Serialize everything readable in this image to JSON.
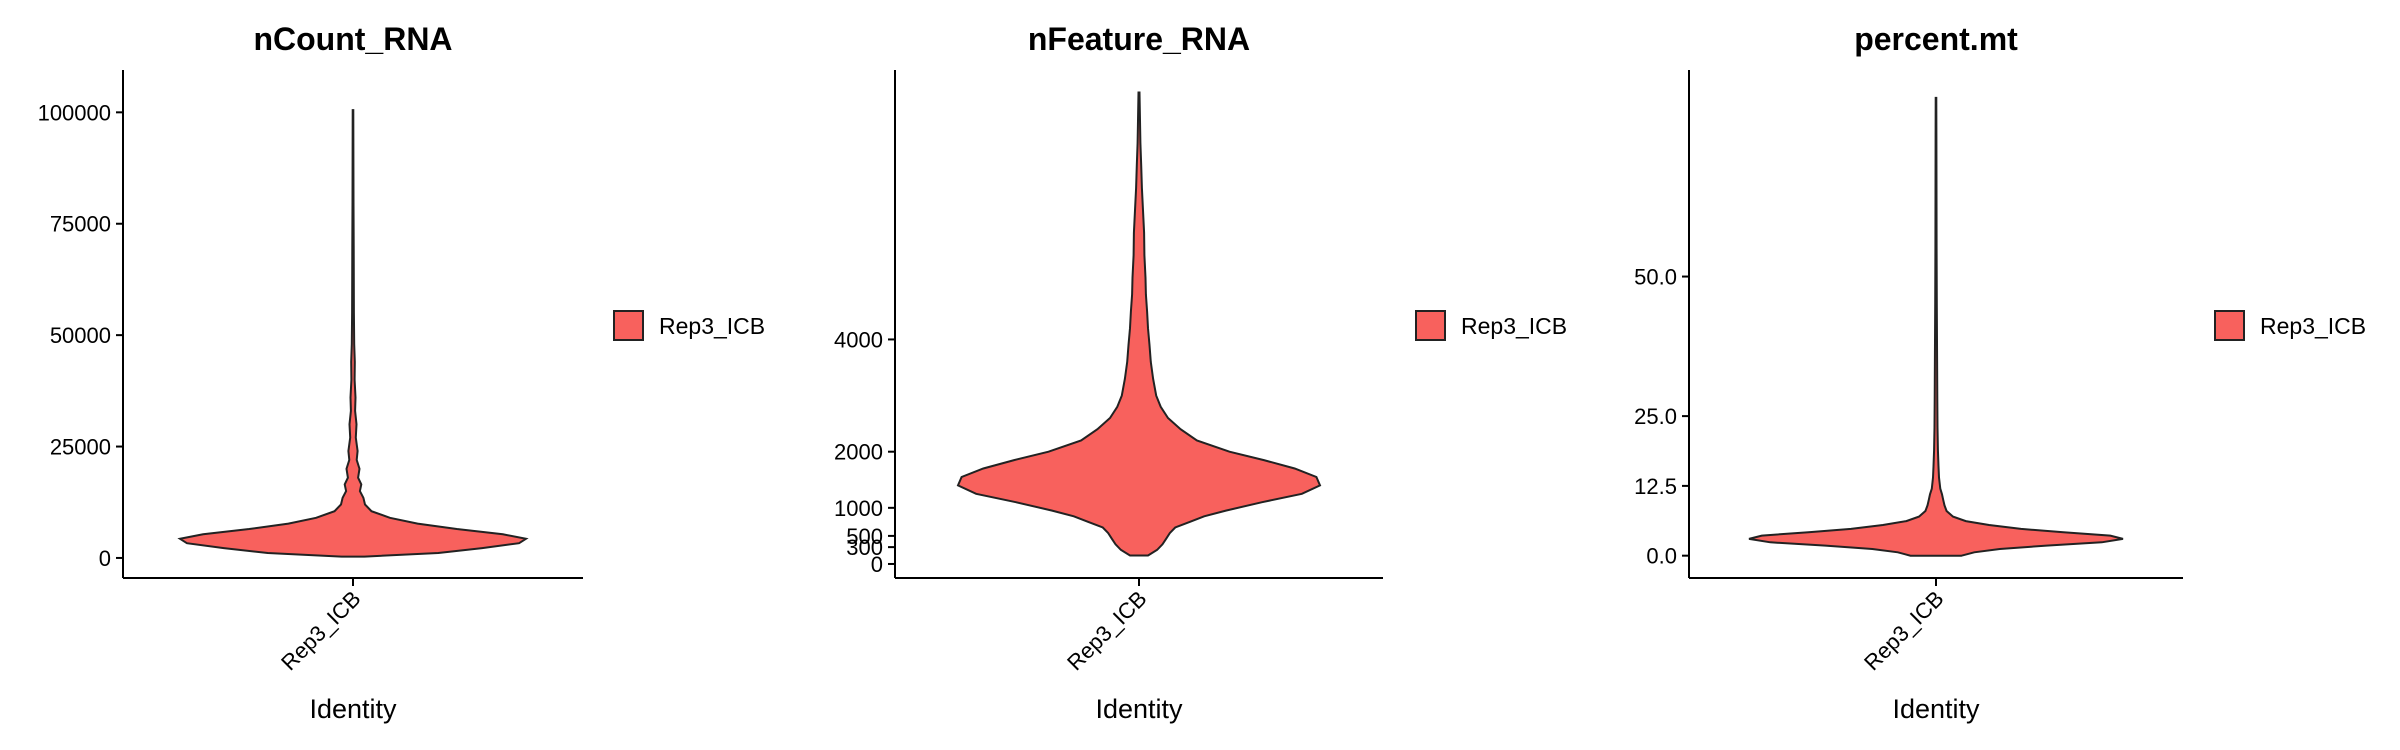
{
  "colors": {
    "fill": "#F8615D",
    "outline": "#222222",
    "axis": "#000000"
  },
  "chart_data": [
    {
      "type": "violin",
      "title": "nCount_RNA",
      "xlabel": "Identity",
      "ylabel": "",
      "categories": [
        "Rep3_ICB"
      ],
      "legend": [
        "Rep3_ICB"
      ],
      "legend_position": "right",
      "grid": false,
      "ylim": [
        -4500,
        109500
      ],
      "yticks": [
        0,
        25000,
        50000,
        75000,
        100000
      ],
      "ytick_labels": [
        "0",
        "25000",
        "50000",
        "75000",
        "100000"
      ],
      "y_max_observed": 100500,
      "density_profile": [
        [
          300,
          0.05
        ],
        [
          1100,
          0.37
        ],
        [
          2200,
          0.56
        ],
        [
          3300,
          0.72
        ],
        [
          4300,
          0.75
        ],
        [
          5300,
          0.65
        ],
        [
          6500,
          0.45
        ],
        [
          7700,
          0.28
        ],
        [
          9000,
          0.16
        ],
        [
          10500,
          0.08
        ],
        [
          12000,
          0.052
        ],
        [
          13500,
          0.045
        ],
        [
          15000,
          0.03
        ],
        [
          16500,
          0.036
        ],
        [
          18000,
          0.022
        ],
        [
          20000,
          0.028
        ],
        [
          22000,
          0.016
        ],
        [
          24000,
          0.02
        ],
        [
          27000,
          0.012
        ],
        [
          30000,
          0.015
        ],
        [
          33000,
          0.009
        ],
        [
          36000,
          0.011
        ],
        [
          40000,
          0.007
        ],
        [
          44000,
          0.008
        ],
        [
          48000,
          0.005
        ],
        [
          55000,
          0.004
        ],
        [
          62000,
          0.0035
        ],
        [
          70000,
          0.003
        ],
        [
          80000,
          0.002
        ],
        [
          90000,
          0.0018
        ],
        [
          100500,
          0.0015
        ]
      ]
    },
    {
      "type": "violin",
      "title": "nFeature_RNA",
      "xlabel": "Identity",
      "ylabel": "",
      "categories": [
        "Rep3_ICB"
      ],
      "legend": [
        "Rep3_ICB"
      ],
      "legend_position": "right",
      "grid": false,
      "ylim": [
        -250,
        8800
      ],
      "yticks": [
        0,
        300,
        500,
        1000,
        2000,
        4000
      ],
      "ytick_labels": [
        "0",
        "300",
        "500",
        "1000",
        "2000",
        "4000"
      ],
      "y_max_observed": 8400,
      "density_profile": [
        [
          150,
          0.05
        ],
        [
          250,
          0.1
        ],
        [
          350,
          0.13
        ],
        [
          450,
          0.15
        ],
        [
          550,
          0.17
        ],
        [
          650,
          0.2
        ],
        [
          750,
          0.28
        ],
        [
          850,
          0.36
        ],
        [
          950,
          0.48
        ],
        [
          1100,
          0.68
        ],
        [
          1250,
          0.9
        ],
        [
          1400,
          1.0
        ],
        [
          1550,
          0.98
        ],
        [
          1700,
          0.86
        ],
        [
          1850,
          0.69
        ],
        [
          2000,
          0.5
        ],
        [
          2200,
          0.32
        ],
        [
          2400,
          0.23
        ],
        [
          2600,
          0.16
        ],
        [
          2800,
          0.12
        ],
        [
          3000,
          0.095
        ],
        [
          3300,
          0.078
        ],
        [
          3600,
          0.065
        ],
        [
          3900,
          0.058
        ],
        [
          4200,
          0.05
        ],
        [
          4500,
          0.045
        ],
        [
          4800,
          0.038
        ],
        [
          5100,
          0.036
        ],
        [
          5500,
          0.03
        ],
        [
          5900,
          0.028
        ],
        [
          6300,
          0.022
        ],
        [
          6700,
          0.016
        ],
        [
          7100,
          0.012
        ],
        [
          7500,
          0.008
        ],
        [
          8000,
          0.005
        ],
        [
          8400,
          0.003
        ]
      ]
    },
    {
      "type": "violin",
      "title": "percent.mt",
      "xlabel": "Identity",
      "ylabel": "",
      "categories": [
        "Rep3_ICB"
      ],
      "legend": [
        "Rep3_ICB"
      ],
      "legend_position": "right",
      "grid": false,
      "ylim": [
        -4,
        87
      ],
      "yticks": [
        0,
        12.5,
        25,
        50
      ],
      "ytick_labels": [
        "0.0",
        "12.5",
        "25.0",
        "50.0"
      ],
      "y_max_observed": 82,
      "density_profile": [
        [
          0.0,
          0.12
        ],
        [
          0.6,
          0.18
        ],
        [
          1.2,
          0.3
        ],
        [
          1.8,
          0.52
        ],
        [
          2.4,
          0.78
        ],
        [
          3.0,
          0.88
        ],
        [
          3.6,
          0.82
        ],
        [
          4.2,
          0.6
        ],
        [
          4.8,
          0.4
        ],
        [
          5.5,
          0.25
        ],
        [
          6.2,
          0.14
        ],
        [
          7.0,
          0.08
        ],
        [
          8.0,
          0.05
        ],
        [
          9.0,
          0.04
        ],
        [
          10.0,
          0.034
        ],
        [
          11.0,
          0.028
        ],
        [
          12.0,
          0.02
        ],
        [
          14.0,
          0.014
        ],
        [
          16.0,
          0.012
        ],
        [
          19.0,
          0.009
        ],
        [
          23.0,
          0.007
        ],
        [
          28.0,
          0.006
        ],
        [
          35.0,
          0.005
        ],
        [
          45.0,
          0.004
        ],
        [
          55.0,
          0.003
        ],
        [
          65.0,
          0.0025
        ],
        [
          75.0,
          0.002
        ],
        [
          82.0,
          0.0015
        ]
      ]
    }
  ]
}
